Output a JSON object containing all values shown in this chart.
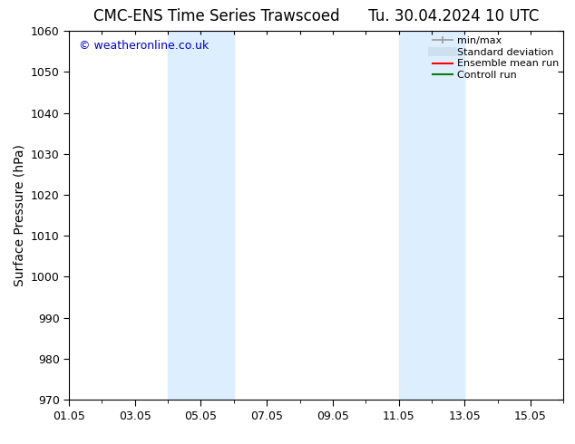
{
  "title": "CMC-ENS Time Series Trawscoed",
  "title_right": "Tu. 30.04.2024 10 UTC",
  "ylabel": "Surface Pressure (hPa)",
  "ylim": [
    970,
    1060
  ],
  "yticks": [
    970,
    980,
    990,
    1000,
    1010,
    1020,
    1030,
    1040,
    1050,
    1060
  ],
  "xtick_days": [
    1,
    3,
    5,
    7,
    9,
    11,
    13,
    15
  ],
  "xtick_labels": [
    "01.05",
    "03.05",
    "05.05",
    "07.05",
    "09.05",
    "11.05",
    "13.05",
    "15.05"
  ],
  "xstart_day": 1,
  "xend_day": 16,
  "shaded_regions": [
    {
      "start": 4,
      "end": 6
    },
    {
      "start": 11,
      "end": 13
    }
  ],
  "shaded_color": "#ddeeff",
  "bg_color": "#ffffff",
  "watermark": "© weatheronline.co.uk",
  "watermark_color": "#0000cc",
  "legend_entries": [
    {
      "label": "min/max",
      "color": "#999999"
    },
    {
      "label": "Standard deviation",
      "color": "#cce0f0"
    },
    {
      "label": "Ensemble mean run",
      "color": "#ff0000"
    },
    {
      "label": "Controll run",
      "color": "#008000"
    }
  ],
  "tick_font_size": 9,
  "label_font_size": 10,
  "title_font_size": 12,
  "legend_font_size": 8
}
